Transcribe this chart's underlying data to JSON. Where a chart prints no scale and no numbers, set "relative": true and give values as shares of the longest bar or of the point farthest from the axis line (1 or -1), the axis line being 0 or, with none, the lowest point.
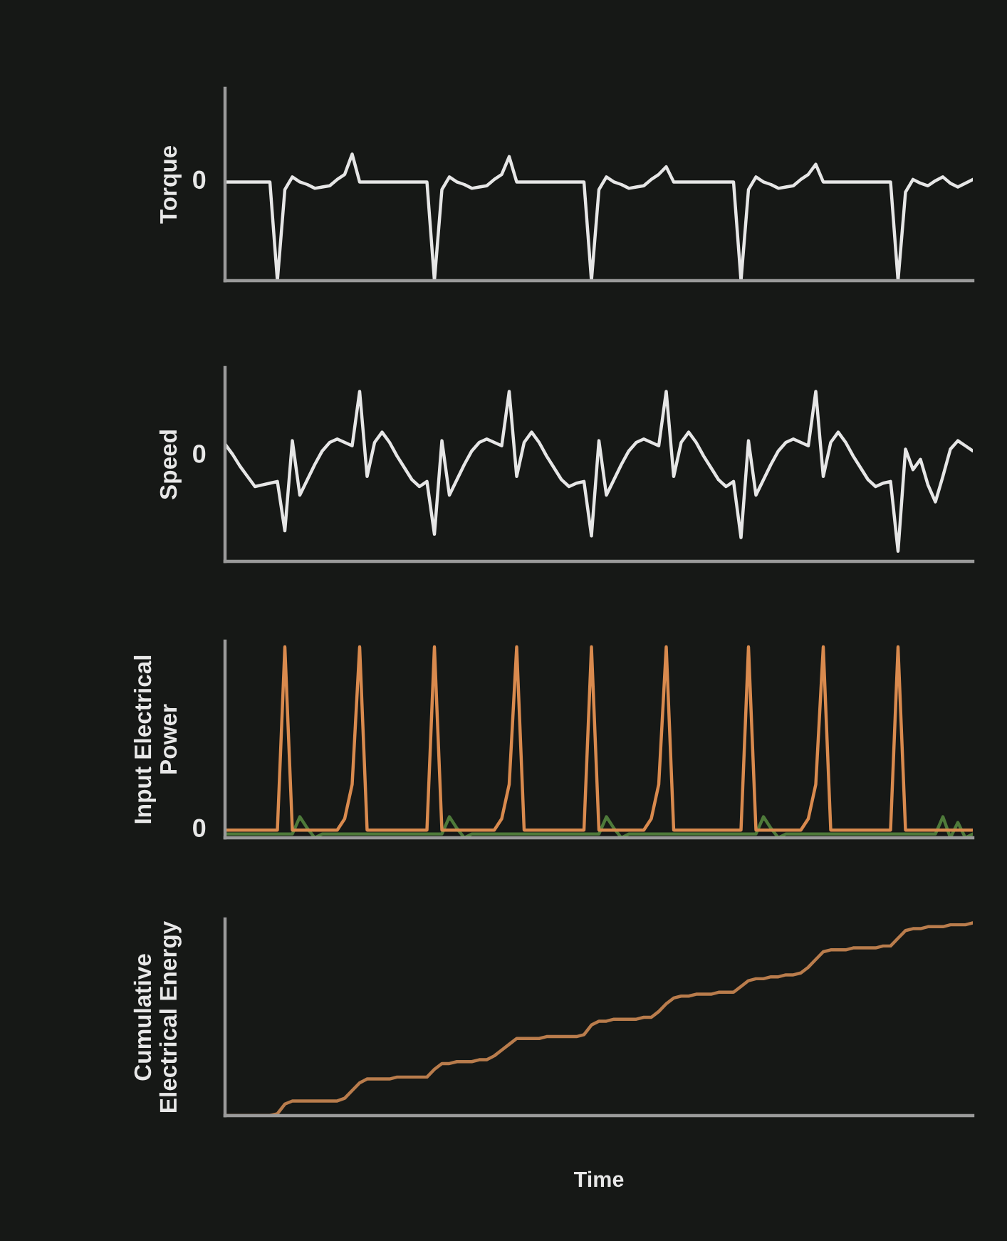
{
  "chart_data": [
    {
      "type": "line",
      "relative": true,
      "tick_labels": false,
      "ylabel": "Torque",
      "annotations": [
        "0"
      ],
      "categories": [
        null,
        null,
        null,
        null,
        null,
        null,
        null,
        null,
        null,
        null,
        null,
        null,
        null,
        null,
        null,
        null,
        null,
        null,
        null,
        null,
        null,
        null,
        null,
        null,
        null,
        null,
        null,
        null,
        null,
        null,
        null,
        null,
        null,
        null,
        null,
        null,
        null,
        null,
        null,
        null,
        null,
        null,
        null,
        null,
        null,
        null,
        null,
        null,
        null,
        null,
        null,
        null,
        null,
        null,
        null,
        null,
        null,
        null,
        null,
        null,
        null,
        null,
        null,
        null,
        null,
        null,
        null,
        null,
        null,
        null,
        null,
        null,
        null,
        null,
        null,
        null,
        null,
        null,
        null,
        null,
        null,
        null,
        null,
        null,
        null,
        null,
        null,
        null,
        null,
        null,
        null,
        null,
        null,
        null,
        null,
        null,
        null,
        null,
        null,
        null,
        null
      ],
      "series": [
        {
          "color": "#e6e6e6",
          "values": [
            0.78,
            0.78,
            0.78,
            0.78,
            0.78,
            0.78,
            0.78,
            0.0,
            0.72,
            0.82,
            0.78,
            0.76,
            0.73,
            0.74,
            0.75,
            0.8,
            0.84,
            1.0,
            0.78,
            0.78,
            0.78,
            0.78,
            0.78,
            0.78,
            0.78,
            0.78,
            0.78,
            0.78,
            0.0,
            0.72,
            0.82,
            0.78,
            0.76,
            0.73,
            0.74,
            0.75,
            0.8,
            0.84,
            0.98,
            0.78,
            0.78,
            0.78,
            0.78,
            0.78,
            0.78,
            0.78,
            0.78,
            0.78,
            0.78,
            0.0,
            0.72,
            0.82,
            0.78,
            0.76,
            0.73,
            0.74,
            0.75,
            0.8,
            0.84,
            0.9,
            0.78,
            0.78,
            0.78,
            0.78,
            0.78,
            0.78,
            0.78,
            0.78,
            0.78,
            0.0,
            0.72,
            0.82,
            0.78,
            0.76,
            0.73,
            0.74,
            0.75,
            0.8,
            0.84,
            0.92,
            0.78,
            0.78,
            0.78,
            0.78,
            0.78,
            0.78,
            0.78,
            0.78,
            0.78,
            0.78,
            0.0,
            0.7,
            0.8,
            0.77,
            0.75,
            0.79,
            0.82,
            0.77,
            0.74,
            0.77,
            0.8
          ]
        }
      ]
    },
    {
      "type": "line",
      "relative": true,
      "tick_labels": false,
      "ylabel": "Speed",
      "annotations": [
        "0"
      ],
      "categories": [
        null,
        null,
        null,
        null,
        null,
        null,
        null,
        null,
        null,
        null,
        null,
        null,
        null,
        null,
        null,
        null,
        null,
        null,
        null,
        null,
        null,
        null,
        null,
        null,
        null,
        null,
        null,
        null,
        null,
        null,
        null,
        null,
        null,
        null,
        null,
        null,
        null,
        null,
        null,
        null,
        null,
        null,
        null,
        null,
        null,
        null,
        null,
        null,
        null,
        null,
        null,
        null,
        null,
        null,
        null,
        null,
        null,
        null,
        null,
        null,
        null,
        null,
        null,
        null,
        null,
        null,
        null,
        null,
        null,
        null,
        null,
        null,
        null,
        null,
        null,
        null,
        null,
        null,
        null,
        null,
        null,
        null,
        null,
        null,
        null,
        null,
        null,
        null,
        null,
        null,
        null,
        null,
        null,
        null,
        null,
        null,
        null,
        null,
        null,
        null,
        null
      ],
      "series": [
        {
          "color": "#e6e6e6",
          "values": [
            0.69,
            0.63,
            0.56,
            0.5,
            0.44,
            0.45,
            0.46,
            0.47,
            0.18,
            0.71,
            0.39,
            0.48,
            0.57,
            0.65,
            0.7,
            0.72,
            0.7,
            0.68,
            1.0,
            0.5,
            0.7,
            0.76,
            0.7,
            0.62,
            0.55,
            0.48,
            0.44,
            0.47,
            0.16,
            0.71,
            0.39,
            0.48,
            0.57,
            0.65,
            0.7,
            0.72,
            0.7,
            0.68,
            1.0,
            0.5,
            0.7,
            0.76,
            0.7,
            0.62,
            0.55,
            0.48,
            0.44,
            0.46,
            0.47,
            0.15,
            0.71,
            0.39,
            0.48,
            0.57,
            0.65,
            0.7,
            0.72,
            0.7,
            0.68,
            1.0,
            0.5,
            0.7,
            0.76,
            0.7,
            0.62,
            0.55,
            0.48,
            0.44,
            0.47,
            0.14,
            0.71,
            0.39,
            0.48,
            0.57,
            0.65,
            0.7,
            0.72,
            0.7,
            0.68,
            1.0,
            0.5,
            0.7,
            0.76,
            0.7,
            0.62,
            0.55,
            0.48,
            0.44,
            0.46,
            0.47,
            0.06,
            0.66,
            0.54,
            0.6,
            0.45,
            0.35,
            0.5,
            0.66,
            0.71,
            0.68,
            0.65
          ]
        }
      ]
    },
    {
      "type": "line",
      "relative": true,
      "tick_labels": false,
      "ylabel": "Input Electrical\nPower",
      "annotations": [
        "0"
      ],
      "categories": [
        null,
        null,
        null,
        null,
        null,
        null,
        null,
        null,
        null,
        null,
        null,
        null,
        null,
        null,
        null,
        null,
        null,
        null,
        null,
        null,
        null,
        null,
        null,
        null,
        null,
        null,
        null,
        null,
        null,
        null,
        null,
        null,
        null,
        null,
        null,
        null,
        null,
        null,
        null,
        null,
        null,
        null,
        null,
        null,
        null,
        null,
        null,
        null,
        null,
        null,
        null,
        null,
        null,
        null,
        null,
        null,
        null,
        null,
        null,
        null,
        null,
        null,
        null,
        null,
        null,
        null,
        null,
        null,
        null,
        null,
        null,
        null,
        null,
        null,
        null,
        null,
        null,
        null,
        null,
        null,
        null,
        null,
        null,
        null,
        null,
        null,
        null,
        null,
        null,
        null,
        null,
        null,
        null,
        null,
        null,
        null,
        null,
        null,
        null,
        null,
        null
      ],
      "series": [
        {
          "color": "#4e7a3a",
          "values": [
            0.02,
            0.02,
            0.02,
            0.02,
            0.02,
            0.02,
            0.02,
            0.02,
            0.02,
            0.02,
            0.11,
            0.05,
            0.0,
            0.02,
            0.02,
            0.02,
            0.02,
            0.02,
            0.02,
            0.02,
            0.02,
            0.02,
            0.02,
            0.02,
            0.02,
            0.02,
            0.02,
            0.02,
            0.02,
            0.02,
            0.11,
            0.05,
            0.0,
            0.02,
            0.02,
            0.02,
            0.02,
            0.02,
            0.02,
            0.02,
            0.02,
            0.02,
            0.02,
            0.02,
            0.02,
            0.02,
            0.02,
            0.02,
            0.02,
            0.02,
            0.02,
            0.11,
            0.05,
            0.0,
            0.02,
            0.02,
            0.02,
            0.02,
            0.02,
            0.02,
            0.02,
            0.02,
            0.02,
            0.02,
            0.02,
            0.02,
            0.02,
            0.02,
            0.02,
            0.02,
            0.02,
            0.02,
            0.11,
            0.05,
            0.0,
            0.02,
            0.02,
            0.02,
            0.02,
            0.02,
            0.02,
            0.02,
            0.02,
            0.02,
            0.02,
            0.02,
            0.02,
            0.02,
            0.02,
            0.02,
            0.02,
            0.02,
            0.02,
            0.02,
            0.02,
            0.02,
            0.11,
            0.0,
            0.08,
            0.0,
            0.02
          ]
        },
        {
          "color": "#d98a4e",
          "values": [
            0.04,
            0.04,
            0.04,
            0.04,
            0.04,
            0.04,
            0.04,
            0.04,
            1.0,
            0.04,
            0.04,
            0.04,
            0.04,
            0.04,
            0.04,
            0.04,
            0.1,
            0.28,
            1.0,
            0.04,
            0.04,
            0.04,
            0.04,
            0.04,
            0.04,
            0.04,
            0.04,
            0.04,
            1.0,
            0.04,
            0.04,
            0.04,
            0.04,
            0.04,
            0.04,
            0.04,
            0.04,
            0.1,
            0.28,
            1.0,
            0.04,
            0.04,
            0.04,
            0.04,
            0.04,
            0.04,
            0.04,
            0.04,
            0.04,
            1.0,
            0.04,
            0.04,
            0.04,
            0.04,
            0.04,
            0.04,
            0.04,
            0.1,
            0.28,
            1.0,
            0.04,
            0.04,
            0.04,
            0.04,
            0.04,
            0.04,
            0.04,
            0.04,
            0.04,
            0.04,
            1.0,
            0.04,
            0.04,
            0.04,
            0.04,
            0.04,
            0.04,
            0.04,
            0.1,
            0.28,
            1.0,
            0.04,
            0.04,
            0.04,
            0.04,
            0.04,
            0.04,
            0.04,
            0.04,
            0.04,
            1.0,
            0.04,
            0.04,
            0.04,
            0.04,
            0.04,
            0.04,
            0.04,
            0.04,
            0.04,
            0.04
          ]
        }
      ]
    },
    {
      "type": "line",
      "relative": true,
      "tick_labels": false,
      "ylabel": "Cumulative\nElectrical Energy",
      "xlabel": "Time",
      "categories": [
        null,
        null,
        null,
        null,
        null,
        null,
        null,
        null,
        null,
        null,
        null,
        null,
        null,
        null,
        null,
        null,
        null,
        null,
        null,
        null,
        null,
        null,
        null,
        null,
        null,
        null,
        null,
        null,
        null,
        null,
        null,
        null,
        null,
        null,
        null,
        null,
        null,
        null,
        null,
        null,
        null,
        null,
        null,
        null,
        null,
        null,
        null,
        null,
        null,
        null,
        null,
        null,
        null,
        null,
        null,
        null,
        null,
        null,
        null,
        null,
        null,
        null,
        null,
        null,
        null,
        null,
        null,
        null,
        null,
        null,
        null,
        null,
        null,
        null,
        null,
        null,
        null,
        null,
        null,
        null,
        null,
        null,
        null,
        null,
        null,
        null,
        null,
        null,
        null,
        null,
        null,
        null,
        null,
        null,
        null,
        null,
        null,
        null,
        null,
        null,
        null
      ],
      "series": [
        {
          "color": "#b97c4c",
          "values": [
            0,
            0,
            0,
            0,
            0,
            0,
            0,
            0.01,
            0.06,
            0.076,
            0.076,
            0.076,
            0.076,
            0.076,
            0.076,
            0.076,
            0.09,
            0.13,
            0.17,
            0.19,
            0.19,
            0.19,
            0.19,
            0.2,
            0.2,
            0.2,
            0.2,
            0.2,
            0.24,
            0.27,
            0.27,
            0.28,
            0.28,
            0.28,
            0.29,
            0.29,
            0.31,
            0.34,
            0.37,
            0.4,
            0.4,
            0.4,
            0.4,
            0.41,
            0.41,
            0.41,
            0.41,
            0.41,
            0.42,
            0.47,
            0.49,
            0.49,
            0.5,
            0.5,
            0.5,
            0.5,
            0.51,
            0.51,
            0.54,
            0.58,
            0.61,
            0.62,
            0.62,
            0.63,
            0.63,
            0.63,
            0.64,
            0.64,
            0.64,
            0.67,
            0.7,
            0.71,
            0.71,
            0.72,
            0.72,
            0.73,
            0.73,
            0.74,
            0.77,
            0.81,
            0.85,
            0.86,
            0.86,
            0.86,
            0.87,
            0.87,
            0.87,
            0.87,
            0.88,
            0.88,
            0.92,
            0.96,
            0.97,
            0.97,
            0.98,
            0.98,
            0.98,
            0.99,
            0.99,
            0.99,
            1.0
          ]
        }
      ]
    }
  ]
}
